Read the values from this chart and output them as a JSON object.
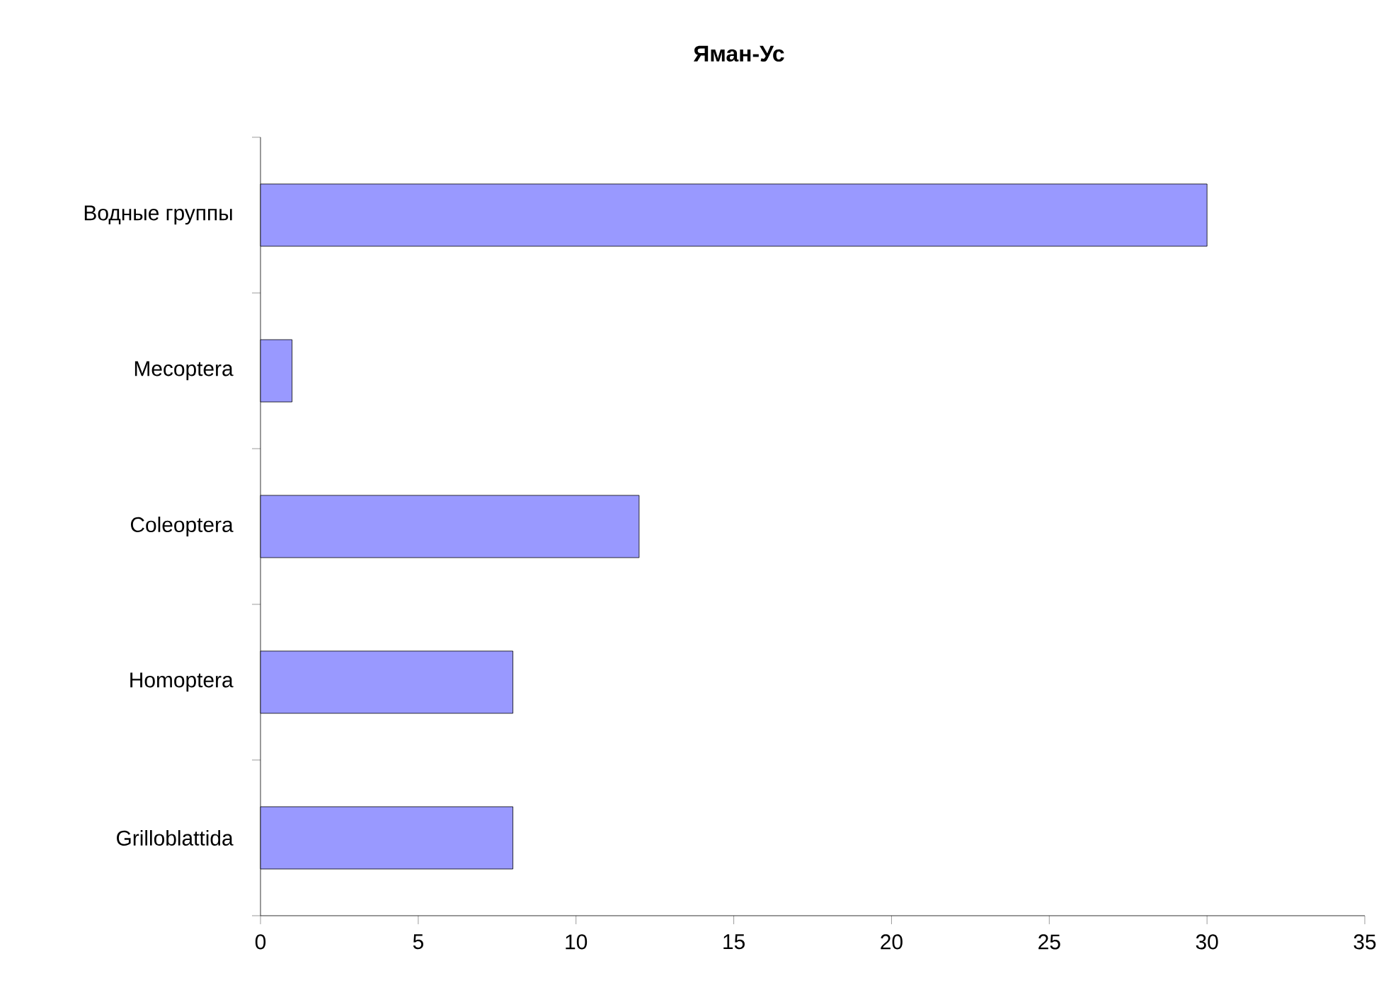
{
  "chart_data": {
    "type": "bar",
    "orientation": "horizontal",
    "title": "Яман-Ус",
    "categories": [
      "Водные группы",
      "Mecoptera",
      "Coleoptera",
      "Homoptera",
      "Grilloblattida"
    ],
    "values": [
      30,
      1,
      12,
      8,
      8
    ],
    "color": "#9999ff",
    "xlim": [
      0,
      35
    ],
    "xticks": [
      0,
      5,
      10,
      15,
      20,
      25,
      30,
      35
    ],
    "grid": false
  }
}
